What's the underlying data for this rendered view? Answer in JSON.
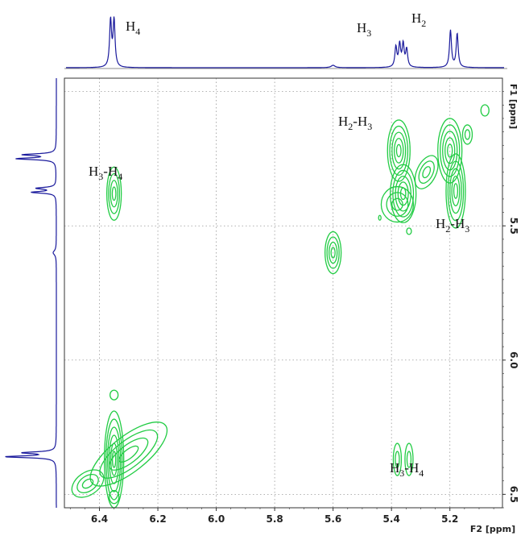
{
  "chart_data": {
    "type": "contour",
    "title": "",
    "f2_axis": {
      "label": "F2 [ppm]",
      "range_ppm": [
        6.52,
        5.02
      ],
      "ticks": [
        "6.4",
        "6.2",
        "6.0",
        "5.8",
        "5.6",
        "5.4",
        "5.2"
      ]
    },
    "f1_axis": {
      "label": "F1 [ppm]",
      "range_ppm": [
        4.95,
        6.55
      ],
      "ticks": [
        "5.5",
        "6.0",
        "6.5"
      ]
    },
    "grid": "dotted",
    "projection_peaks": [
      {
        "label": "H",
        "sub": "4",
        "ppm": 6.35
      },
      {
        "label": "H",
        "sub": "3",
        "ppm": 5.37
      },
      {
        "label": "H",
        "sub": "2",
        "ppm": 5.18
      }
    ],
    "cross_peaks": [
      {
        "label": "H3-H4",
        "f2": 6.35,
        "f1": 5.38
      },
      {
        "label": "H2-H3",
        "f2": 5.37,
        "f1": 5.25
      },
      {
        "label": "H2-H3",
        "f2": 5.19,
        "f1": 5.3
      },
      {
        "label": "H3-H4",
        "f2": 5.36,
        "f1": 6.37
      }
    ],
    "diagonal_peaks": [
      {
        "f2": 6.35,
        "f1": 6.35
      },
      {
        "f2": 5.6,
        "f1": 5.6
      }
    ],
    "annotations": [
      {
        "main": "H",
        "sub": "3",
        "mid": "-H",
        "sub2": "4"
      },
      {
        "main": "H",
        "sub": "2",
        "mid": "-H",
        "sub2": "3"
      },
      {
        "main": "H",
        "sub": "2",
        "mid": "-H",
        "sub2": "3"
      },
      {
        "main": "H",
        "sub": "3",
        "mid": "-H",
        "sub2": "4"
      }
    ],
    "colors": {
      "contour": "#22cc44",
      "projection": "#1a1a9c",
      "grid": "#999999",
      "frame": "#333333"
    }
  }
}
